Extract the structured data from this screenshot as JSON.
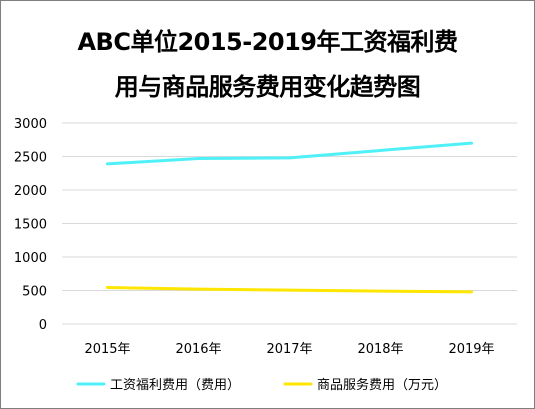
{
  "chart_data": {
    "type": "line",
    "title_line1": "ABC单位2015-2019年工资福利费",
    "title_line2": "用与商品服务费用变化趋势图",
    "categories": [
      "2015年",
      "2016年",
      "2017年",
      "2018年",
      "2019年"
    ],
    "series": [
      {
        "name": "工资福利费用（费用）",
        "values": [
          2390,
          2470,
          2480,
          2590,
          2700
        ],
        "color": "#4ff0f7"
      },
      {
        "name": "商品服务费用（万元）",
        "values": [
          545,
          520,
          505,
          490,
          480
        ],
        "color": "#ffe600"
      }
    ],
    "yticks": [
      "0",
      "500",
      "1000",
      "1500",
      "2000",
      "2500",
      "3000"
    ],
    "ylim": [
      0,
      3000
    ],
    "grid": true,
    "legend_position": "bottom"
  }
}
